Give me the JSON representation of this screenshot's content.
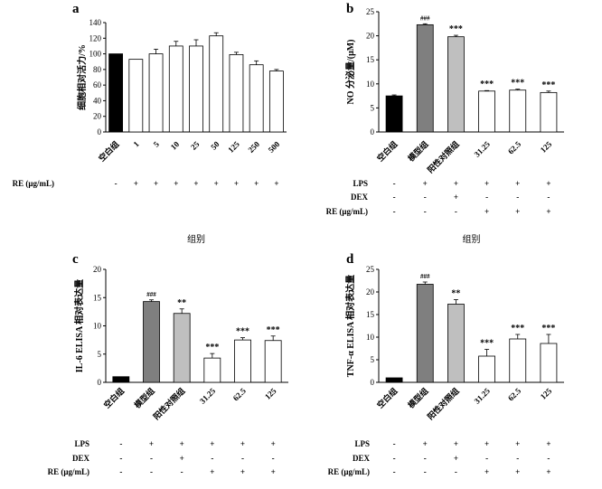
{
  "chart_data": [
    {
      "type": "bar",
      "panel": "a",
      "ylabel": "细胞相对活力/%",
      "ylim": [
        0,
        140
      ],
      "yticks": [
        0,
        20,
        40,
        60,
        80,
        100,
        120,
        140
      ],
      "categories": [
        "空白组",
        "1",
        "5",
        "10",
        "25",
        "50",
        "125",
        "250",
        "500"
      ],
      "values": [
        100,
        93,
        100,
        110,
        110,
        123,
        99,
        86,
        78
      ],
      "errors": [
        0,
        0,
        6,
        6,
        8,
        4,
        3,
        5,
        2
      ],
      "colors": [
        "#000000",
        "#ffffff",
        "#ffffff",
        "#ffffff",
        "#ffffff",
        "#ffffff",
        "#ffffff",
        "#ffffff",
        "#ffffff"
      ],
      "significance": [
        "",
        "",
        "",
        "",
        "",
        "",
        "",
        "",
        ""
      ],
      "xlabel": "组别",
      "table": [
        {
          "label": "RE (μg/mL)",
          "values": [
            "-",
            "+",
            "+",
            "+",
            "+",
            "+",
            "+",
            "+",
            "+"
          ]
        }
      ]
    },
    {
      "type": "bar",
      "panel": "b",
      "ylabel": "NO 分泌量/(μM)",
      "ylim": [
        0,
        25
      ],
      "yticks": [
        0,
        5,
        10,
        15,
        20,
        25
      ],
      "categories": [
        "空白组",
        "模型组",
        "阳性对照组",
        "31.25",
        "62.5",
        "125"
      ],
      "values": [
        7.5,
        22.3,
        19.8,
        8.5,
        8.7,
        8.2
      ],
      "errors": [
        0.2,
        0.2,
        0.3,
        0.1,
        0.2,
        0.3
      ],
      "colors": [
        "#000000",
        "#7f7f7f",
        "#bfbfbf",
        "#ffffff",
        "#ffffff",
        "#ffffff"
      ],
      "significance": [
        "",
        "###",
        "***",
        "***",
        "***",
        "***"
      ],
      "xlabel": "组别",
      "table": [
        {
          "label": "LPS",
          "values": [
            "-",
            "+",
            "+",
            "+",
            "+",
            "+"
          ]
        },
        {
          "label": "DEX",
          "values": [
            "-",
            "-",
            "+",
            "-",
            "-",
            "-"
          ]
        },
        {
          "label": "RE (μg/mL)",
          "values": [
            "-",
            "-",
            "-",
            "+",
            "+",
            "+"
          ]
        }
      ]
    },
    {
      "type": "bar",
      "panel": "c",
      "ylabel": "IL-6 ELISA 相对表达量",
      "ylim": [
        0,
        20
      ],
      "yticks": [
        0,
        5,
        10,
        15,
        20
      ],
      "categories": [
        "空白组",
        "模型组",
        "阳性对照组",
        "31.25",
        "62.5",
        "125"
      ],
      "values": [
        1,
        14.3,
        12.2,
        4.3,
        7.5,
        7.4
      ],
      "errors": [
        0,
        0.3,
        0.8,
        0.8,
        0.4,
        0.8
      ],
      "colors": [
        "#000000",
        "#7f7f7f",
        "#bfbfbf",
        "#ffffff",
        "#ffffff",
        "#ffffff"
      ],
      "significance": [
        "",
        "###",
        "**",
        "***",
        "***",
        "***"
      ],
      "xlabel": "",
      "table": [
        {
          "label": "LPS",
          "values": [
            "-",
            "+",
            "+",
            "+",
            "+",
            "+"
          ]
        },
        {
          "label": "DEX",
          "values": [
            "-",
            "-",
            "+",
            "-",
            "-",
            "-"
          ]
        },
        {
          "label": "RE (μg/mL)",
          "values": [
            "-",
            "-",
            "-",
            "+",
            "+",
            "+"
          ]
        }
      ]
    },
    {
      "type": "bar",
      "panel": "d",
      "ylabel": "TNF-α ELISA 相对表达量",
      "ylim": [
        0,
        25
      ],
      "yticks": [
        0,
        5,
        10,
        15,
        20,
        25
      ],
      "categories": [
        "空白组",
        "模型组",
        "阳性对照组",
        "31.25",
        "62.5",
        "125"
      ],
      "values": [
        1,
        21.7,
        17.3,
        5.8,
        9.6,
        8.6
      ],
      "errors": [
        0,
        0.5,
        1.0,
        1.5,
        1.0,
        2.0
      ],
      "colors": [
        "#000000",
        "#7f7f7f",
        "#bfbfbf",
        "#ffffff",
        "#ffffff",
        "#ffffff"
      ],
      "significance": [
        "",
        "###",
        "**",
        "***",
        "***",
        "***"
      ],
      "xlabel": "",
      "table": [
        {
          "label": "LPS",
          "values": [
            "-",
            "+",
            "+",
            "+",
            "+",
            "+"
          ]
        },
        {
          "label": "DEX",
          "values": [
            "-",
            "-",
            "+",
            "-",
            "-",
            "-"
          ]
        },
        {
          "label": "RE (μg/mL)",
          "values": [
            "-",
            "-",
            "-",
            "+",
            "+",
            "+"
          ]
        }
      ]
    }
  ]
}
